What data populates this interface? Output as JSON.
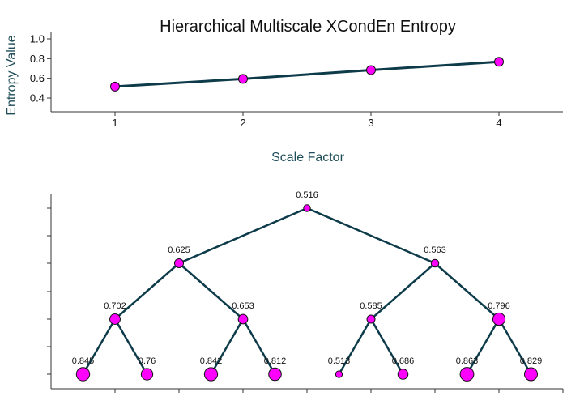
{
  "colors": {
    "line": "#0d3b4a",
    "marker": "#ff00ff",
    "marker_edge": "#111111",
    "axis_label": "#1f4d59"
  },
  "chart_data": [
    {
      "type": "line",
      "title": "Hierarchical Multiscale XCondEn Entropy",
      "xlabel": "Scale Factor",
      "ylabel": "Entropy Value",
      "x": [
        1,
        2,
        3,
        4
      ],
      "values": [
        0.516,
        0.594,
        0.684,
        0.768
      ],
      "xticks": [
        "1",
        "2",
        "3",
        "4"
      ],
      "yticks": [
        "0.4",
        "0.6",
        "0.8",
        "1.0"
      ],
      "ylim": [
        0.3,
        1.0
      ],
      "grid": false
    },
    {
      "type": "tree",
      "levels": [
        [
          "0.516"
        ],
        [
          "0.625",
          "0.563"
        ],
        [
          "0.702",
          "0.653",
          "0.585",
          "0.796"
        ],
        [
          "0.845",
          "0.76",
          "0.842",
          "0.812",
          "0.513",
          "0.686",
          "0.863",
          "0.829"
        ]
      ],
      "grid": false
    }
  ]
}
